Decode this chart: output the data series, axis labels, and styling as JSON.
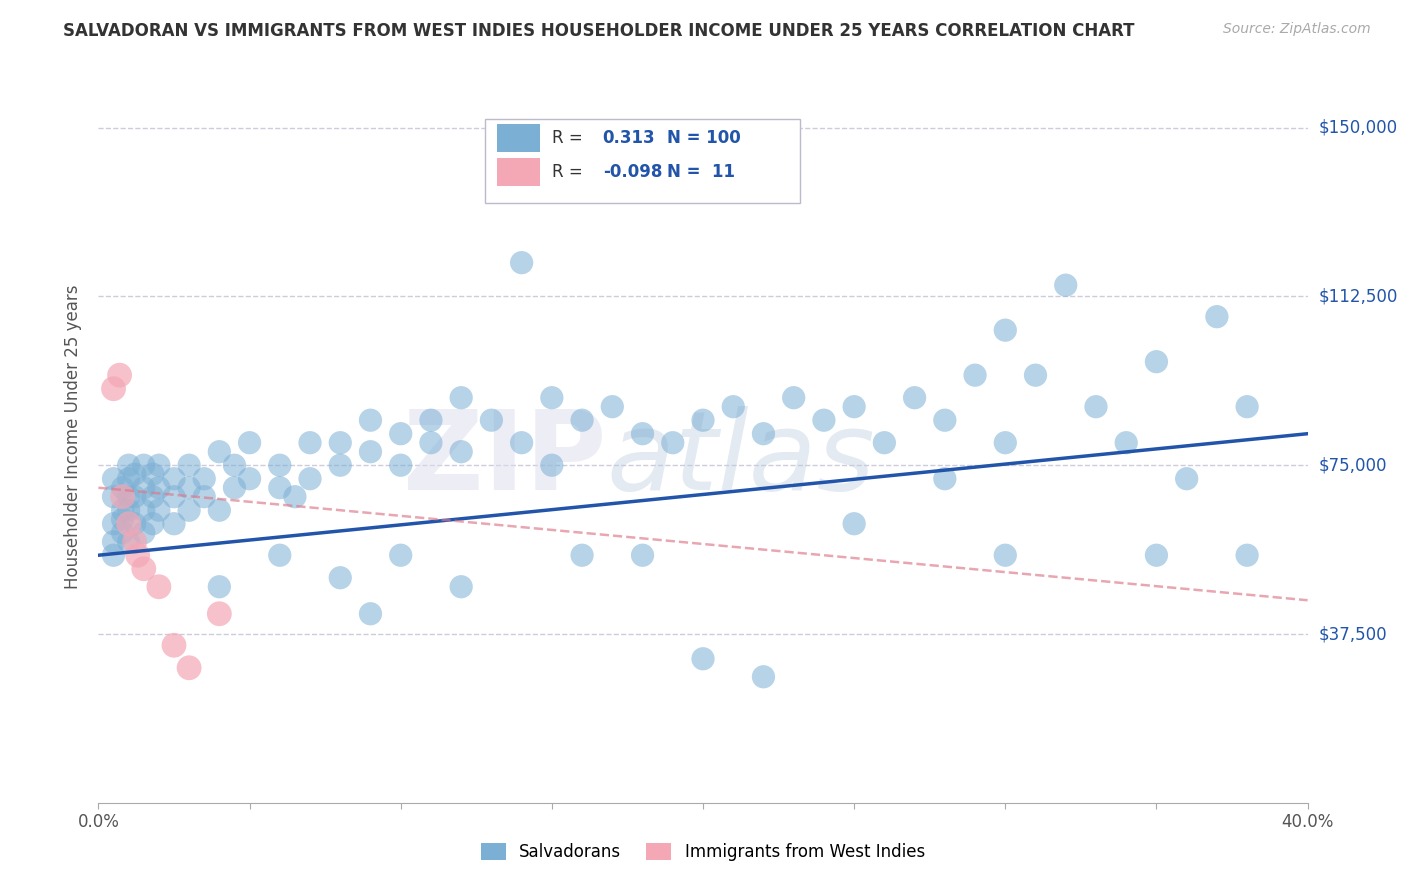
{
  "title": "SALVADORAN VS IMMIGRANTS FROM WEST INDIES HOUSEHOLDER INCOME UNDER 25 YEARS CORRELATION CHART",
  "source": "Source: ZipAtlas.com",
  "ylabel": "Householder Income Under 25 years",
  "watermark": "ZIPAtlas",
  "blue_R": 0.313,
  "blue_N": 100,
  "pink_R": -0.098,
  "pink_N": 11,
  "blue_label": "Salvadorans",
  "pink_label": "Immigrants from West Indies",
  "xlim": [
    0.0,
    0.4
  ],
  "ylim": [
    0,
    162500
  ],
  "yticks": [
    0,
    37500,
    75000,
    112500,
    150000
  ],
  "ytick_labels": [
    "",
    "$37,500",
    "$75,000",
    "$112,500",
    "$150,000"
  ],
  "xticks": [
    0.0,
    0.05,
    0.1,
    0.15,
    0.2,
    0.25,
    0.3,
    0.35,
    0.4
  ],
  "xtick_labels": [
    "0.0%",
    "",
    "",
    "",
    "",
    "",
    "",
    "",
    "40.0%"
  ],
  "blue_color": "#7BAFD4",
  "pink_color": "#F4A7B5",
  "trend_blue_color": "#2255AA",
  "trend_pink_color": "#DD7788",
  "bg_color": "#FFFFFF",
  "grid_color": "#CCCCDD",
  "blue_scatter_x": [
    0.005,
    0.005,
    0.005,
    0.005,
    0.005,
    0.008,
    0.008,
    0.008,
    0.008,
    0.01,
    0.01,
    0.01,
    0.01,
    0.01,
    0.012,
    0.012,
    0.012,
    0.015,
    0.015,
    0.015,
    0.015,
    0.018,
    0.018,
    0.018,
    0.02,
    0.02,
    0.02,
    0.025,
    0.025,
    0.025,
    0.03,
    0.03,
    0.03,
    0.035,
    0.035,
    0.04,
    0.04,
    0.045,
    0.045,
    0.05,
    0.05,
    0.06,
    0.06,
    0.065,
    0.07,
    0.07,
    0.08,
    0.08,
    0.09,
    0.09,
    0.1,
    0.1,
    0.11,
    0.11,
    0.12,
    0.12,
    0.13,
    0.14,
    0.15,
    0.15,
    0.16,
    0.17,
    0.18,
    0.19,
    0.2,
    0.21,
    0.22,
    0.23,
    0.24,
    0.25,
    0.26,
    0.27,
    0.28,
    0.29,
    0.3,
    0.3,
    0.31,
    0.32,
    0.33,
    0.34,
    0.35,
    0.36,
    0.37,
    0.38,
    0.22,
    0.14,
    0.09,
    0.04,
    0.18,
    0.12,
    0.06,
    0.2,
    0.08,
    0.25,
    0.1,
    0.16,
    0.3,
    0.35,
    0.28,
    0.38
  ],
  "blue_scatter_y": [
    62000,
    68000,
    72000,
    58000,
    55000,
    65000,
    70000,
    60000,
    63000,
    68000,
    72000,
    58000,
    75000,
    65000,
    62000,
    68000,
    73000,
    65000,
    70000,
    75000,
    60000,
    68000,
    73000,
    62000,
    70000,
    65000,
    75000,
    68000,
    72000,
    62000,
    65000,
    70000,
    75000,
    68000,
    72000,
    65000,
    78000,
    70000,
    75000,
    72000,
    80000,
    70000,
    75000,
    68000,
    80000,
    72000,
    75000,
    80000,
    78000,
    85000,
    75000,
    82000,
    80000,
    85000,
    78000,
    90000,
    85000,
    80000,
    90000,
    75000,
    85000,
    88000,
    82000,
    80000,
    85000,
    88000,
    82000,
    90000,
    85000,
    88000,
    80000,
    90000,
    85000,
    95000,
    105000,
    80000,
    95000,
    115000,
    88000,
    80000,
    98000,
    72000,
    108000,
    88000,
    28000,
    120000,
    42000,
    48000,
    55000,
    48000,
    55000,
    32000,
    50000,
    62000,
    55000,
    55000,
    55000,
    55000,
    72000,
    55000
  ],
  "pink_scatter_x": [
    0.005,
    0.007,
    0.008,
    0.01,
    0.012,
    0.013,
    0.015,
    0.02,
    0.025,
    0.03,
    0.04
  ],
  "pink_scatter_y": [
    92000,
    95000,
    68000,
    62000,
    58000,
    55000,
    52000,
    48000,
    35000,
    30000,
    42000
  ],
  "blue_trend_x0": 0.0,
  "blue_trend_y0": 55000,
  "blue_trend_x1": 0.4,
  "blue_trend_y1": 82000,
  "pink_trend_x0": 0.0,
  "pink_trend_y0": 70000,
  "pink_trend_x1": 0.4,
  "pink_trend_y1": 45000
}
